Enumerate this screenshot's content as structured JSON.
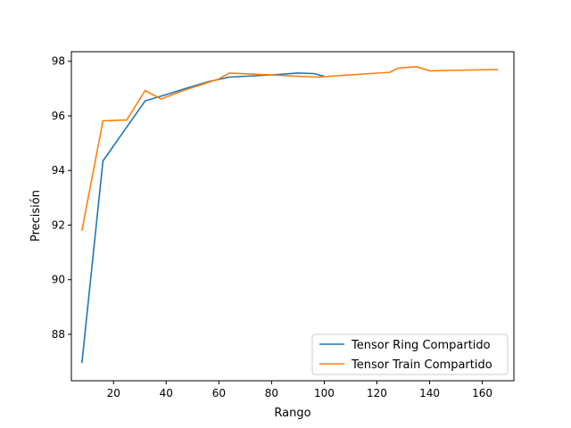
{
  "chart_data": {
    "type": "line",
    "title": "",
    "xlabel": "Rango",
    "ylabel": "Precisión",
    "xlim": [
      4,
      172
    ],
    "ylim": [
      86.3,
      98.35
    ],
    "xticks": [
      20,
      40,
      60,
      80,
      100,
      120,
      140,
      160
    ],
    "yticks": [
      88,
      90,
      92,
      94,
      96,
      98
    ],
    "grid": false,
    "legend_position": "lower-right",
    "series": [
      {
        "name": "Tensor Ring Compartido",
        "color": "#1f77b4",
        "x": [
          8,
          16,
          32,
          40,
          48,
          56,
          64,
          80,
          90,
          96,
          100
        ],
        "y": [
          86.95,
          94.35,
          96.55,
          96.78,
          97.02,
          97.25,
          97.42,
          97.5,
          97.57,
          97.55,
          97.45
        ]
      },
      {
        "name": "Tensor Train Compartido",
        "color": "#ff7f0e",
        "x": [
          8,
          16,
          25,
          32,
          38,
          48,
          60,
          64,
          80,
          90,
          98,
          102,
          125,
          128,
          135,
          140,
          166
        ],
        "y": [
          91.8,
          95.82,
          95.85,
          96.93,
          96.62,
          96.98,
          97.35,
          97.57,
          97.5,
          97.45,
          97.42,
          97.45,
          97.6,
          97.75,
          97.8,
          97.65,
          97.7
        ]
      }
    ]
  }
}
